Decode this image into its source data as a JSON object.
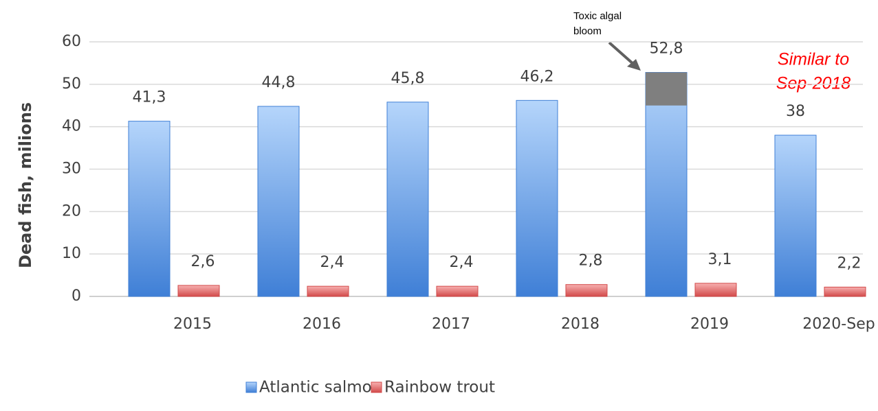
{
  "chart_data": {
    "type": "bar",
    "ylabel": "Dead fish, milions",
    "categories": [
      "2015",
      "2016",
      "2017",
      "2018",
      "2019",
      "2020-Sep"
    ],
    "series": [
      {
        "name": "Atlantic salmon",
        "color": "#3f7fd6",
        "color_light": "#b5d5fb",
        "values": [
          41.3,
          44.8,
          45.8,
          46.2,
          52.8,
          38
        ],
        "value_labels": [
          "41,3",
          "44,8",
          "45,8",
          "46,2",
          "52,8",
          "38"
        ],
        "highlight_from": [
          null,
          null,
          null,
          null,
          45,
          null
        ],
        "highlight_color": "#7f7f7f"
      },
      {
        "name": "Rainbow trout",
        "color": "#d24a4a",
        "color_light": "#f7b0b0",
        "values": [
          2.6,
          2.4,
          2.4,
          2.8,
          3.1,
          2.2
        ],
        "value_labels": [
          "2,6",
          "2,4",
          "2,4",
          "2,8",
          "3,1",
          "2,2"
        ]
      }
    ],
    "annotation": [
      "Toxic algal",
      "bloom"
    ],
    "note": [
      "Similar to",
      "Sep-2018"
    ],
    "note_color": "#ff0000",
    "ylim": [
      0,
      60
    ],
    "yticks": [
      0,
      10,
      20,
      30,
      40,
      50,
      60
    ],
    "grid": true,
    "legend": "bottom"
  }
}
